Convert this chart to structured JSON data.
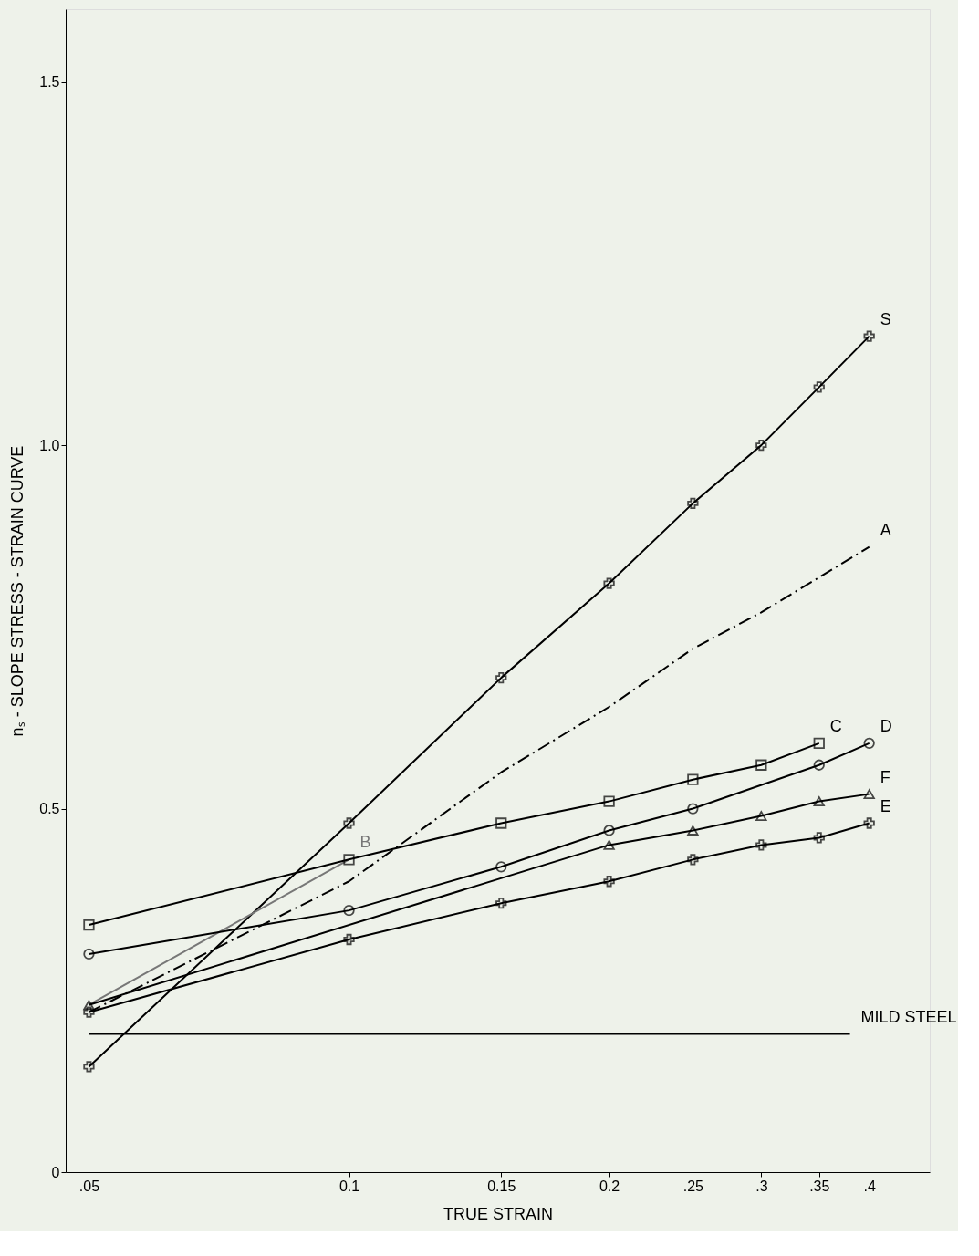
{
  "chart_data": {
    "type": "line",
    "xlabel": "TRUE STRAIN",
    "ylabel": "nₛ - SLOPE STRESS - STRAIN CURVE",
    "log": "x",
    "grid": false,
    "xlim": [
      0.047,
      0.47
    ],
    "ylim": [
      0,
      1.6
    ],
    "xticks": [
      {
        "value": 0.05,
        "label": ".05"
      },
      0.1,
      0.15,
      0.2,
      {
        "value": 0.25,
        "label": ".25"
      },
      {
        "value": 0.3,
        "label": ".3"
      },
      {
        "value": 0.35,
        "label": ".35"
      },
      {
        "value": 0.4,
        "label": ".4"
      }
    ],
    "yticks": [
      0,
      0.5,
      {
        "value": 1.0,
        "label": "1.0"
      },
      1.5
    ],
    "series": [
      {
        "name": "S",
        "color": "#000000",
        "marker": "cross",
        "line_style": "solid",
        "x": [
          0.05,
          0.1,
          0.15,
          0.2,
          0.25,
          0.3,
          0.35,
          0.4
        ],
        "values": [
          0.145,
          0.48,
          0.68,
          0.81,
          0.92,
          1.0,
          1.08,
          1.15
        ]
      },
      {
        "name": "A",
        "color": "#000000",
        "marker": "none",
        "line_style": "dashed",
        "x": [
          0.05,
          0.1,
          0.15,
          0.2,
          0.25,
          0.3,
          0.4
        ],
        "values": [
          0.22,
          0.4,
          0.55,
          0.64,
          0.72,
          0.77,
          0.86
        ]
      },
      {
        "name": "B",
        "color": "#777777",
        "marker": "none",
        "line_style": "solid",
        "x": [
          0.05,
          0.1
        ],
        "values": [
          0.23,
          0.43
        ]
      },
      {
        "name": "C",
        "color": "#000000",
        "marker": "square",
        "line_style": "solid",
        "x": [
          0.05,
          0.1,
          0.15,
          0.2,
          0.25,
          0.3,
          0.35
        ],
        "values": [
          0.34,
          0.43,
          0.48,
          0.51,
          0.54,
          0.56,
          0.59
        ]
      },
      {
        "name": "D",
        "color": "#000000",
        "marker": "circle",
        "line_style": "solid",
        "x": [
          0.05,
          0.1,
          0.15,
          0.2,
          0.25,
          0.35,
          0.4
        ],
        "values": [
          0.3,
          0.36,
          0.42,
          0.47,
          0.5,
          0.56,
          0.59
        ]
      },
      {
        "name": "F",
        "color": "#000000",
        "marker": "triangle",
        "line_style": "solid",
        "x": [
          0.05,
          0.2,
          0.25,
          0.3,
          0.35,
          0.4
        ],
        "values": [
          0.23,
          0.45,
          0.47,
          0.49,
          0.51,
          0.52
        ]
      },
      {
        "name": "E",
        "color": "#000000",
        "marker": "cross",
        "line_style": "solid",
        "x": [
          0.05,
          0.1,
          0.15,
          0.2,
          0.25,
          0.3,
          0.35,
          0.4
        ],
        "values": [
          0.22,
          0.32,
          0.37,
          0.4,
          0.43,
          0.45,
          0.46,
          0.48
        ]
      },
      {
        "name": "MILD STEEL",
        "color": "#000000",
        "marker": "none",
        "line_style": "solid",
        "x": [
          0.05,
          0.38
        ],
        "values": [
          0.19,
          0.19
        ]
      }
    ]
  }
}
